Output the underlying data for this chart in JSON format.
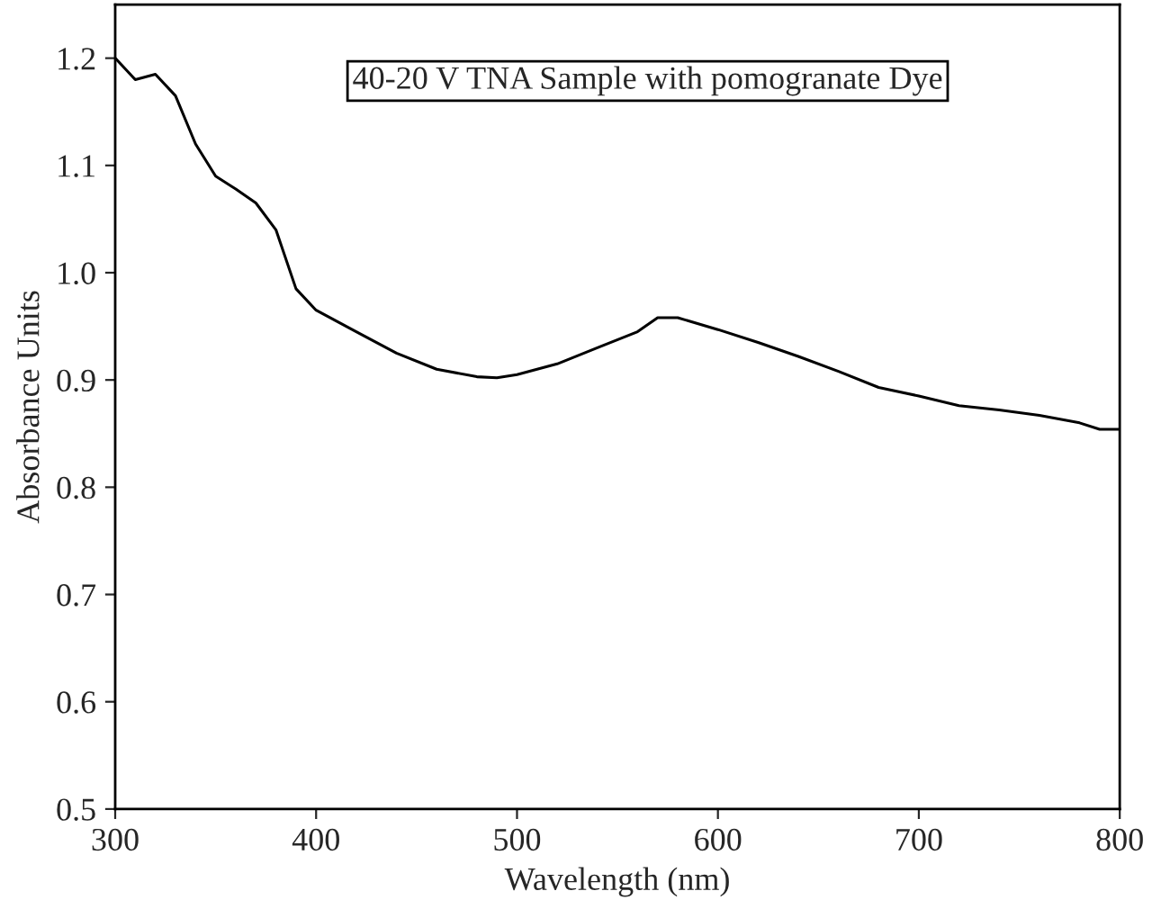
{
  "chart_data": {
    "type": "line",
    "xlabel": "Wavelength (nm)",
    "ylabel": "Absorbance Units",
    "annotations": [
      "40-20 V TNA Sample with pomogranate Dye"
    ],
    "series": [
      {
        "color": "#000000",
        "x": [
          300,
          310,
          320,
          330,
          340,
          350,
          360,
          370,
          380,
          390,
          400,
          420,
          440,
          460,
          480,
          490,
          500,
          520,
          540,
          560,
          570,
          580,
          600,
          620,
          640,
          660,
          680,
          700,
          720,
          740,
          760,
          780,
          790,
          800
        ],
        "values": [
          1.2,
          1.18,
          1.185,
          1.165,
          1.12,
          1.09,
          1.078,
          1.065,
          1.04,
          0.985,
          0.965,
          0.945,
          0.925,
          0.91,
          0.903,
          0.902,
          0.905,
          0.915,
          0.93,
          0.945,
          0.958,
          0.958,
          0.947,
          0.935,
          0.922,
          0.908,
          0.893,
          0.885,
          0.876,
          0.872,
          0.867,
          0.86,
          0.854,
          0.854
        ]
      }
    ],
    "xlim": [
      300,
      800
    ],
    "xticks": [
      300,
      400,
      500,
      600,
      700,
      800
    ],
    "ylim": [
      0.5,
      1.25
    ],
    "yticks": [
      0.5,
      0.6,
      0.7,
      0.8,
      0.9,
      {
        "value": 1.0,
        "label": "1.0"
      },
      1.1,
      1.2
    ],
    "grid": false,
    "legend": false,
    "marker": "none",
    "line_style": "solid"
  }
}
